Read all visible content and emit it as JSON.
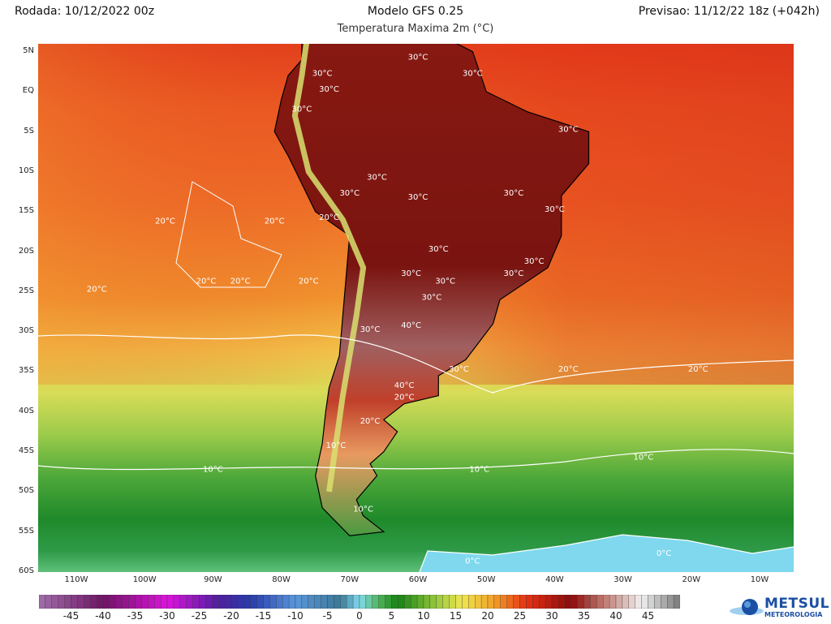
{
  "header": {
    "run": "Rodada: 10/12/2022 00z",
    "model": "Modelo GFS 0.25",
    "forecast": "Previsao: 11/12/22 18z (+042h)",
    "subtitle": "Temperatura Maxima 2m (°C)"
  },
  "map": {
    "variable": "2m maximum temperature",
    "lat_labels": [
      "5N",
      "EQ",
      "5S",
      "10S",
      "15S",
      "20S",
      "25S",
      "30S",
      "35S",
      "40S",
      "45S",
      "50S",
      "55S",
      "60S"
    ],
    "lon_labels": [
      "110W",
      "100W",
      "90W",
      "80W",
      "70W",
      "60W",
      "50W",
      "40W",
      "30W",
      "20W",
      "10W"
    ],
    "contour_labels": [
      {
        "text": "30°C",
        "lon": -60,
        "lat": 4
      },
      {
        "text": "30°C",
        "lon": -52,
        "lat": 2
      },
      {
        "text": "30°C",
        "lon": -74,
        "lat": 2
      },
      {
        "text": "30°C",
        "lon": -73,
        "lat": 0
      },
      {
        "text": "30°C",
        "lon": -77,
        "lat": -2.5
      },
      {
        "text": "30°C",
        "lon": -38,
        "lat": -5
      },
      {
        "text": "30°C",
        "lon": -66,
        "lat": -11
      },
      {
        "text": "30°C",
        "lon": -60,
        "lat": -13.5
      },
      {
        "text": "30°C",
        "lon": -70,
        "lat": -13
      },
      {
        "text": "30°C",
        "lon": -46,
        "lat": -13
      },
      {
        "text": "30°C",
        "lon": -40,
        "lat": -15
      },
      {
        "text": "30°C",
        "lon": -57,
        "lat": -20
      },
      {
        "text": "30°C",
        "lon": -43,
        "lat": -21.5
      },
      {
        "text": "30°C",
        "lon": -61,
        "lat": -23
      },
      {
        "text": "30°C",
        "lon": -56,
        "lat": -24
      },
      {
        "text": "30°C",
        "lon": -58,
        "lat": -26
      },
      {
        "text": "30°C",
        "lon": -67,
        "lat": -30
      },
      {
        "text": "30°C",
        "lon": -46,
        "lat": -23
      },
      {
        "text": "30°C",
        "lon": -54,
        "lat": -35
      },
      {
        "text": "40°C",
        "lon": -61,
        "lat": -29.5
      },
      {
        "text": "40°C",
        "lon": -62,
        "lat": -37
      },
      {
        "text": "20°C",
        "lon": -73,
        "lat": -16
      },
      {
        "text": "20°C",
        "lon": -76,
        "lat": -24
      },
      {
        "text": "20°C",
        "lon": -62,
        "lat": -38.5
      },
      {
        "text": "20°C",
        "lon": -67,
        "lat": -41.5
      },
      {
        "text": "20°C",
        "lon": -97,
        "lat": -16.5
      },
      {
        "text": "20°C",
        "lon": -81,
        "lat": -16.5
      },
      {
        "text": "20°C",
        "lon": -107,
        "lat": -25
      },
      {
        "text": "20°C",
        "lon": -91,
        "lat": -24
      },
      {
        "text": "20°C",
        "lon": -86,
        "lat": -24
      },
      {
        "text": "20°C",
        "lon": -38,
        "lat": -35
      },
      {
        "text": "20°C",
        "lon": -19,
        "lat": -35
      },
      {
        "text": "10°C",
        "lon": -72,
        "lat": -44.5
      },
      {
        "text": "10°C",
        "lon": -90,
        "lat": -47.5
      },
      {
        "text": "10°C",
        "lon": -51,
        "lat": -47.5
      },
      {
        "text": "10°C",
        "lon": -27,
        "lat": -46
      },
      {
        "text": "10°C",
        "lon": -68,
        "lat": -52.5
      },
      {
        "text": "0°C",
        "lon": -52,
        "lat": -59
      },
      {
        "text": "0°C",
        "lon": -24,
        "lat": -58
      }
    ]
  },
  "colorbar": {
    "min": -50,
    "max": 50,
    "tick_labels": [
      "-45",
      "-40",
      "-35",
      "-30",
      "-25",
      "-20",
      "-15",
      "-10",
      "-5",
      "0",
      "5",
      "10",
      "15",
      "20",
      "25",
      "30",
      "35",
      "40",
      "45"
    ]
  },
  "logo": {
    "name": "METSUL",
    "tagline": "METEOROLOGIA"
  }
}
